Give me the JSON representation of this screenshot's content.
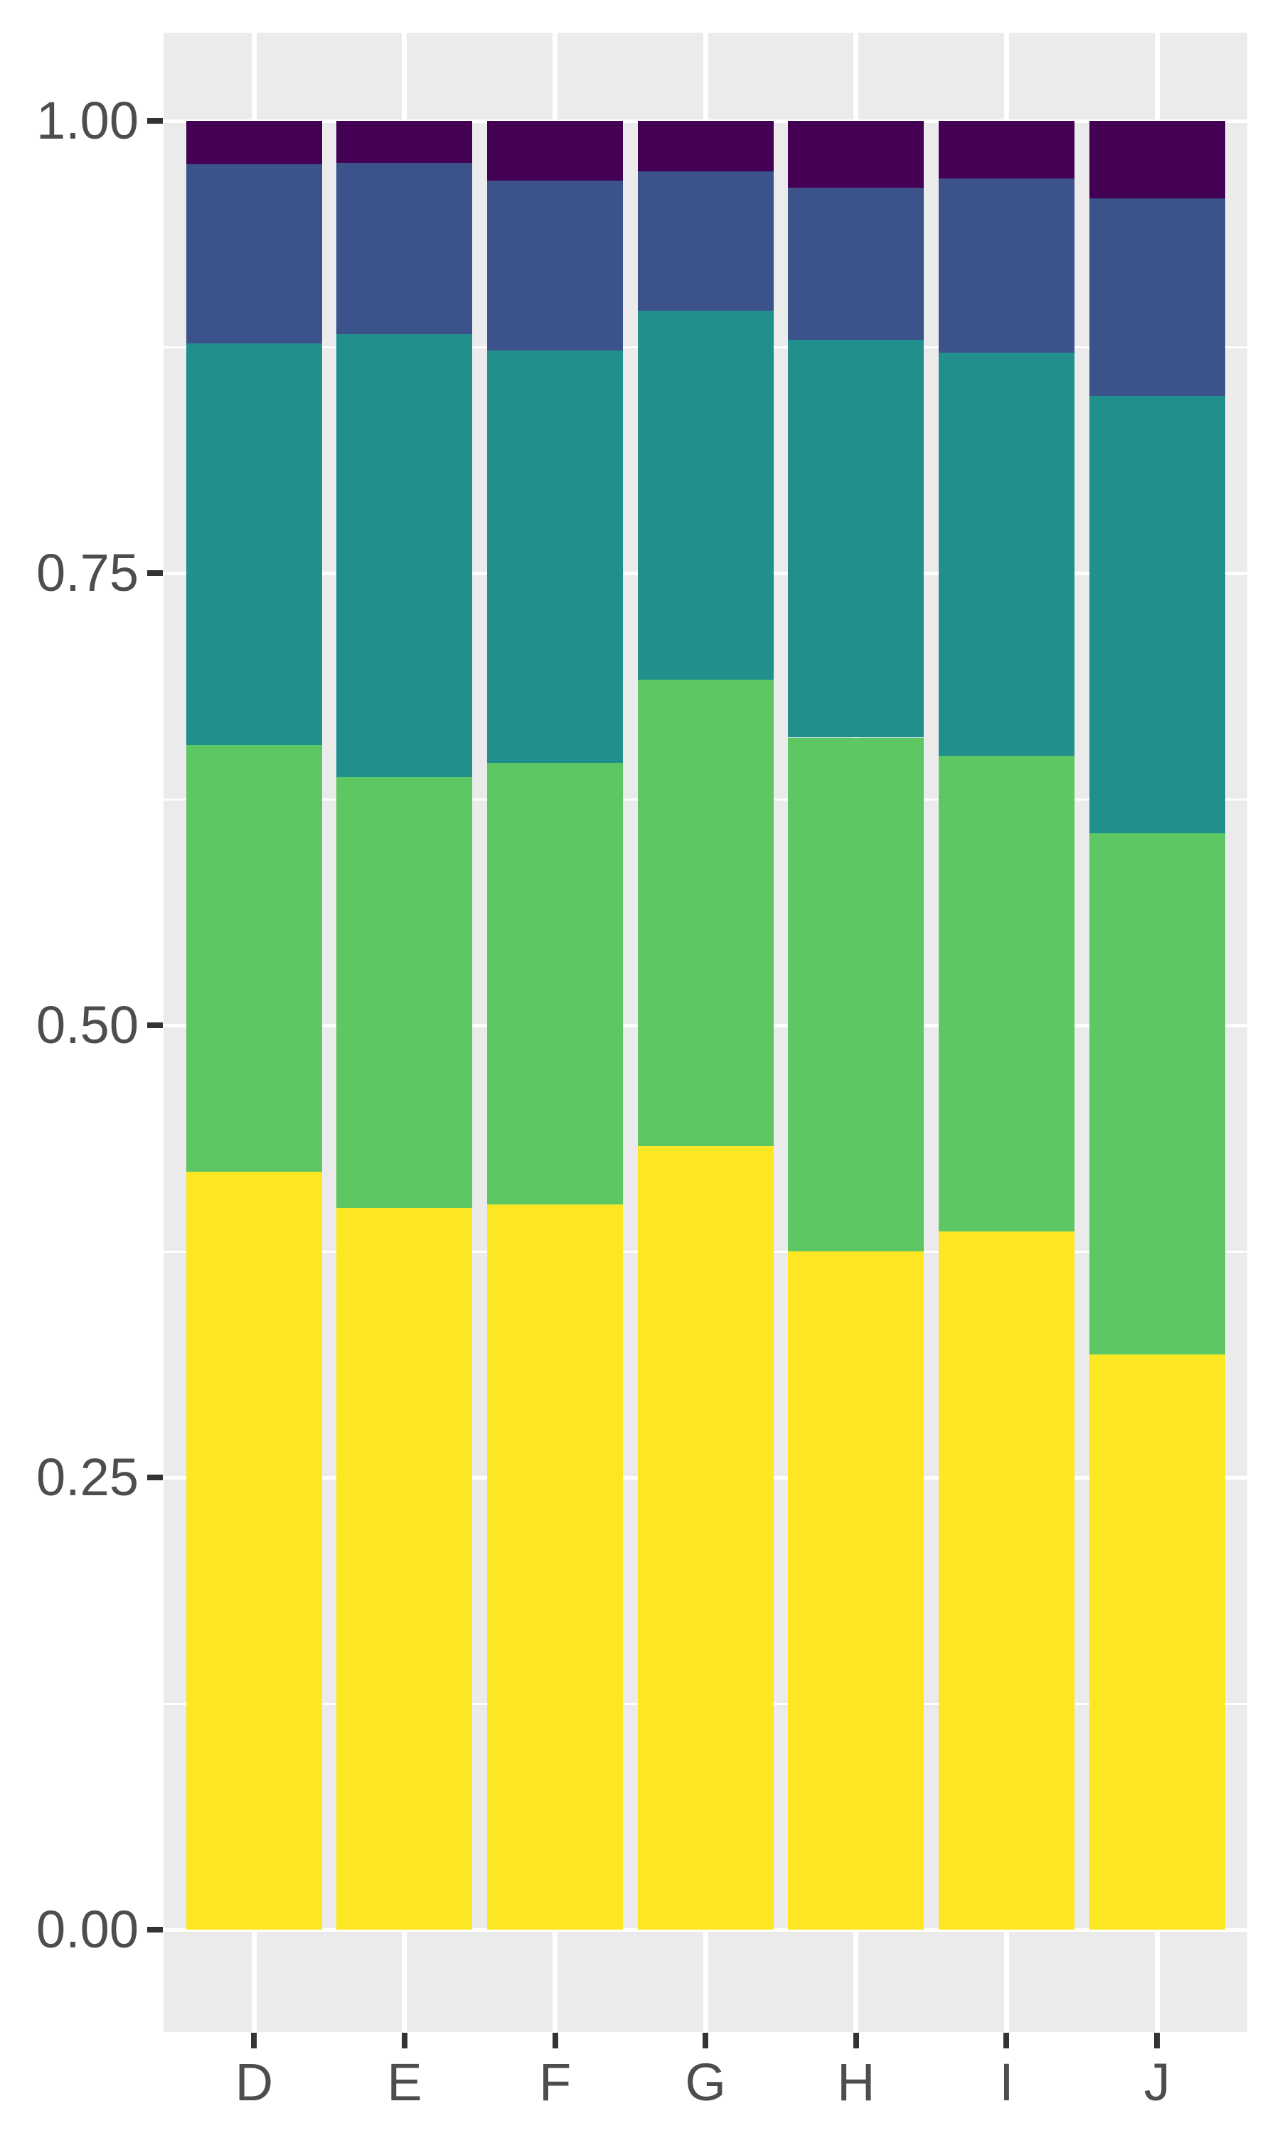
{
  "chart_data": {
    "type": "bar",
    "stacked": true,
    "normalized": true,
    "title": "",
    "xlabel": "",
    "ylabel": "",
    "legend": {
      "visible": false
    },
    "grid": "on",
    "categories": [
      "D",
      "E",
      "F",
      "G",
      "H",
      "I",
      "J"
    ],
    "series": [
      {
        "name": "segment-1-yellow",
        "color": "#FDE725",
        "values": [
          0.419,
          0.399,
          0.401,
          0.433,
          0.375,
          0.386,
          0.318
        ]
      },
      {
        "name": "segment-2-green",
        "color": "#5DC863",
        "values": [
          0.236,
          0.238,
          0.244,
          0.258,
          0.284,
          0.263,
          0.288
        ]
      },
      {
        "name": "segment-3-teal",
        "color": "#21908C",
        "values": [
          0.222,
          0.245,
          0.228,
          0.204,
          0.22,
          0.223,
          0.242
        ]
      },
      {
        "name": "segment-4-blue",
        "color": "#3B528B",
        "values": [
          0.099,
          0.095,
          0.094,
          0.077,
          0.084,
          0.096,
          0.109
        ]
      },
      {
        "name": "segment-5-purple",
        "color": "#440154",
        "values": [
          0.024,
          0.023,
          0.033,
          0.028,
          0.037,
          0.032,
          0.043
        ]
      }
    ],
    "y_axis": {
      "range": [
        0.0,
        1.0
      ],
      "tick_labels": [
        "0.00",
        "0.25",
        "0.50",
        "0.75",
        "1.00"
      ],
      "tick_values": [
        0.0,
        0.25,
        0.5,
        0.75,
        1.0
      ],
      "minor_values": [
        0.125,
        0.375,
        0.625,
        0.875
      ]
    },
    "x_axis": {
      "tick_labels": [
        "D",
        "E",
        "F",
        "G",
        "H",
        "I",
        "J"
      ]
    },
    "style": {
      "background": "#FFFFFF",
      "panel_background": "#EBEBEB",
      "gridline_color": "#FFFFFF",
      "tick_mark_color": "#333333",
      "tick_label_color": "#4D4D4D"
    }
  }
}
